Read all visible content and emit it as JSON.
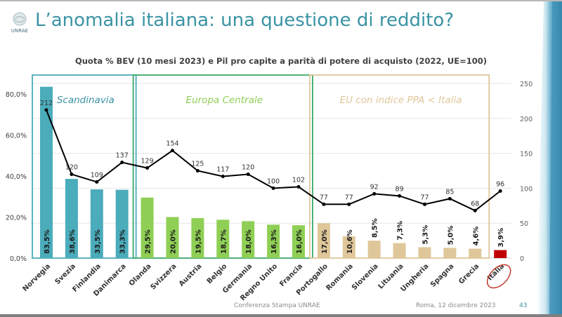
{
  "slide": {
    "title": "L’anomalia italiana: una questione di reddito?",
    "logo_text": "UNRAE",
    "footer": {
      "center": "Conferenza Stampa UNRAE",
      "date": "Roma, 12 dicembre 2023",
      "page": "43"
    }
  },
  "chart_data": {
    "type": "bar",
    "title": "Quota % BEV (10 mesi 2023) e Pil pro capite a parità di potere di acquisto (2022, UE=100)",
    "categories": [
      "Norvegia",
      "Svezia",
      "Finlandia",
      "Danimarca",
      "Olanda",
      "Svizzera",
      "Austria",
      "Belgio",
      "Germania",
      "Regno Unito",
      "Francia",
      "Portogallo",
      "Romania",
      "Slovenia",
      "Lituania",
      "Ungheria",
      "Spagna",
      "Grecia",
      "Italia"
    ],
    "series": [
      {
        "name": "Quota % BEV (10 mesi 2023)",
        "type": "bar",
        "axis": "left",
        "values": [
          83.5,
          38.6,
          33.5,
          33.3,
          29.5,
          20.0,
          19.5,
          18.7,
          18.0,
          16.3,
          16.0,
          17.0,
          10.6,
          8.5,
          7.3,
          5.3,
          5.0,
          4.6,
          3.9
        ],
        "labels": [
          "83,5%",
          "38,6%",
          "33,5%",
          "33,3%",
          "29,5%",
          "20,0%",
          "19,5%",
          "18,7%",
          "18,0%",
          "16,3%",
          "16,0%",
          "17,0%",
          "10,6%",
          "8,5%",
          "7,3%",
          "5,3%",
          "5,0%",
          "4,6%",
          "3,9%"
        ],
        "colors_by_group": [
          "#4bacbb",
          "#4bacbb",
          "#4bacbb",
          "#4bacbb",
          "#8fcf55",
          "#8fcf55",
          "#8fcf55",
          "#8fcf55",
          "#8fcf55",
          "#8fcf55",
          "#8fcf55",
          "#dfc79a",
          "#dfc79a",
          "#dfc79a",
          "#dfc79a",
          "#dfc79a",
          "#dfc79a",
          "#dfc79a",
          "#c00000"
        ]
      },
      {
        "name": "Pil pro capite PPA (2022, UE=100)",
        "type": "line",
        "axis": "right",
        "values": [
          212,
          120,
          109,
          137,
          129,
          154,
          125,
          117,
          120,
          100,
          102,
          77,
          77,
          92,
          89,
          77,
          85,
          68,
          96
        ],
        "color": "#000000"
      }
    ],
    "left_axis": {
      "ylim": [
        0,
        80
      ],
      "ticks": [
        "0,0%",
        "20,0%",
        "40,0%",
        "60,0%",
        "80,0%"
      ],
      "tick_values": [
        0,
        20,
        40,
        60,
        80
      ]
    },
    "right_axis": {
      "ylim": [
        0,
        250
      ],
      "ticks": [
        "0",
        "50",
        "100",
        "150",
        "200",
        "250"
      ],
      "tick_values": [
        0,
        50,
        100,
        150,
        200,
        250
      ]
    },
    "grid": true,
    "groups": [
      {
        "label": "Scandinavia",
        "start": 0,
        "end": 3,
        "color": "#4bacbb"
      },
      {
        "label": "Europa Centrale",
        "start": 4,
        "end": 10,
        "color": "#8fcf55"
      },
      {
        "label": "EU con indice PPA < Italia",
        "start": 11,
        "end": 17,
        "color": "#dfc79a"
      }
    ],
    "highlight": {
      "category": "Italia",
      "style": "red-circle",
      "color": "#c0392b"
    }
  }
}
